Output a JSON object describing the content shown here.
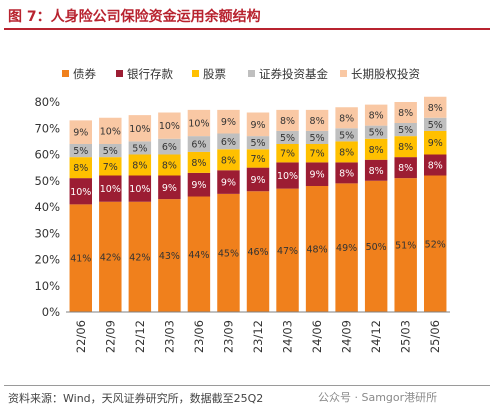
{
  "figure": {
    "title": "图 7：人身险公司保险资金运用余额结构",
    "source": "资料来源：Wind，天风证券研究所，数据截至25Q2",
    "watermark": "公众号 · Samgor港研所"
  },
  "colors": {
    "brand": "#b8232f",
    "bonds": "#f0801c",
    "deposits": "#9c1d33",
    "stocks": "#ffc000",
    "funds": "#bfbfbf",
    "equity": "#f9c8a4"
  },
  "chart_data": {
    "type": "bar",
    "stacked": true,
    "categories": [
      "22/06",
      "22/09",
      "22/12",
      "23/03",
      "23/06",
      "23/09",
      "23/12",
      "24/03",
      "24/06",
      "24/09",
      "24/12",
      "25/03",
      "25/06"
    ],
    "series": [
      {
        "name": "债券",
        "values": [
          41,
          42,
          42,
          43,
          44,
          45,
          46,
          47,
          48,
          49,
          50,
          51,
          52
        ]
      },
      {
        "name": "银行存款",
        "values": [
          10,
          10,
          10,
          9,
          9,
          9,
          9,
          10,
          9,
          8,
          8,
          8,
          8
        ]
      },
      {
        "name": "股票",
        "values": [
          8,
          7,
          8,
          8,
          8,
          8,
          7,
          7,
          7,
          8,
          8,
          8,
          9
        ]
      },
      {
        "name": "证券投资基金",
        "values": [
          5,
          5,
          5,
          6,
          6,
          6,
          5,
          5,
          5,
          5,
          5,
          5,
          5
        ]
      },
      {
        "name": "长期股权投资",
        "values": [
          9,
          10,
          10,
          10,
          10,
          9,
          9,
          8,
          8,
          8,
          8,
          8,
          8
        ]
      }
    ],
    "ylim": [
      0,
      80
    ],
    "yticks": [
      "0%",
      "10%",
      "20%",
      "30%",
      "40%",
      "50%",
      "60%",
      "70%",
      "80%"
    ],
    "legend_position": "top",
    "grid": false,
    "label_suffix": "%"
  }
}
